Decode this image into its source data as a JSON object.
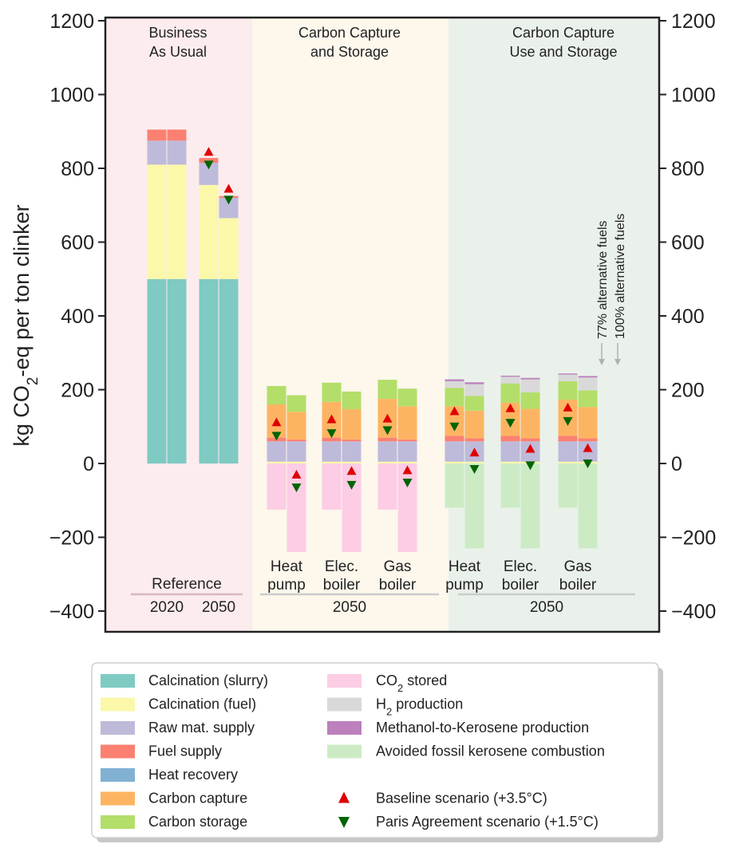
{
  "chart_data": {
    "type": "bar",
    "ylabel_parts": [
      "kg CO",
      "2",
      "-eq per ton clinker"
    ],
    "ylim": [
      -450,
      1200
    ],
    "yticks": [
      1200,
      1000,
      800,
      600,
      400,
      200,
      0,
      -200,
      -400
    ],
    "ytick_labels": [
      "1200",
      "1000",
      "800",
      "600",
      "400",
      "200",
      "0",
      "−200",
      "−400"
    ],
    "grid": false,
    "regions": [
      {
        "label_lines": [
          "Business",
          "As Usual"
        ],
        "color": "#fcecee"
      },
      {
        "label_lines": [
          "Carbon Capture",
          "and Storage"
        ],
        "color": "#fdf7ec"
      },
      {
        "label_lines": [
          "Carbon Capture",
          "Use and Storage"
        ],
        "color": "#eaf1ea"
      }
    ],
    "group_labels": [
      {
        "top": "Reference",
        "bottom_left": "2020",
        "bottom_right": "2050"
      },
      {
        "year": "2050"
      },
      {
        "year": "2050"
      }
    ],
    "categories": [
      [
        "Heat",
        "pump"
      ],
      [
        "Elec.",
        "boiler"
      ],
      [
        "Gas",
        "boiler"
      ],
      [
        "Heat",
        "pump"
      ],
      [
        "Elec.",
        "boiler"
      ],
      [
        "Gas",
        "boiler"
      ]
    ],
    "annotations": [
      "77% alternative fuels",
      "100% alternative fuels"
    ],
    "series": [
      {
        "key": "calc_slurry",
        "name": "Calcination (slurry)",
        "color": "#7fcac3"
      },
      {
        "key": "calc_fuel",
        "name": "Calcination (fuel)",
        "color": "#fbf8a9"
      },
      {
        "key": "raw",
        "name": "Raw mat. supply",
        "color": "#bebada"
      },
      {
        "key": "fuel",
        "name": "Fuel supply",
        "color": "#fb8072"
      },
      {
        "key": "heat",
        "name": "Heat recovery",
        "color": "#80b1d3"
      },
      {
        "key": "capture",
        "name": "Carbon capture",
        "color": "#fdb462"
      },
      {
        "key": "storage",
        "name": "Carbon storage",
        "color": "#b3de69"
      },
      {
        "key": "stored",
        "name_parts": [
          "CO",
          "2",
          " stored"
        ],
        "color": "#fccde5"
      },
      {
        "key": "h2",
        "name_parts": [
          "H",
          "2",
          " production"
        ],
        "color": "#d9d9d9"
      },
      {
        "key": "mtk",
        "name": "Methanol-to-Kerosene production",
        "color": "#bc80bd"
      },
      {
        "key": "avoided",
        "name": "Avoided fossil kerosene combustion",
        "color": "#ccebc5"
      }
    ],
    "markers": [
      {
        "name": "Baseline scenario (+3.5°C)",
        "shape": "triangle-up",
        "color": "#e00000"
      },
      {
        "name": "Paris Agreement scenario (+1.5°C)",
        "shape": "triangle-down",
        "color": "#006400"
      }
    ],
    "bars": [
      {
        "group": "Reference 2020",
        "variant": "77%",
        "stack": {
          "calc_slurry": 500,
          "calc_fuel": 310,
          "raw": 65,
          "fuel": 30
        }
      },
      {
        "group": "Reference 2020",
        "variant": "100%",
        "stack": {
          "calc_slurry": 500,
          "calc_fuel": 310,
          "raw": 65,
          "fuel": 30
        }
      },
      {
        "group": "Reference 2050",
        "variant": "77%",
        "stack": {
          "calc_slurry": 500,
          "calc_fuel": 255,
          "raw": 60,
          "fuel": 13
        },
        "baseline": 845,
        "paris": 810
      },
      {
        "group": "Reference 2050",
        "variant": "100%",
        "stack": {
          "calc_slurry": 500,
          "calc_fuel": 165,
          "raw": 55,
          "fuel": 5
        },
        "baseline": 745,
        "paris": 715
      },
      {
        "group": "CCS Heat pump",
        "variant": "77%",
        "stack": {
          "calc_fuel": 5,
          "raw": 55,
          "fuel": 10,
          "capture": 90,
          "storage": 50,
          "stored": -125
        },
        "baseline": 112,
        "paris": 75
      },
      {
        "group": "CCS Heat pump",
        "variant": "100%",
        "stack": {
          "calc_fuel": 5,
          "raw": 55,
          "fuel": 5,
          "capture": 75,
          "storage": 45,
          "stored": -240
        },
        "baseline": -30,
        "paris": -65
      },
      {
        "group": "CCS Elec. boiler",
        "variant": "77%",
        "stack": {
          "calc_fuel": 5,
          "raw": 55,
          "fuel": 10,
          "capture": 97,
          "storage": 52,
          "stored": -125
        },
        "baseline": 120,
        "paris": 82
      },
      {
        "group": "CCS Elec. boiler",
        "variant": "100%",
        "stack": {
          "calc_fuel": 5,
          "raw": 55,
          "fuel": 5,
          "capture": 82,
          "storage": 48,
          "stored": -240
        },
        "baseline": -20,
        "paris": -58
      },
      {
        "group": "CCS Gas boiler",
        "variant": "77%",
        "stack": {
          "calc_fuel": 5,
          "raw": 55,
          "fuel": 10,
          "capture": 105,
          "storage": 52,
          "stored": -125
        },
        "baseline": 122,
        "paris": 90
      },
      {
        "group": "CCS Gas boiler",
        "variant": "100%",
        "stack": {
          "calc_fuel": 5,
          "raw": 55,
          "fuel": 5,
          "capture": 90,
          "storage": 48,
          "stored": -240
        },
        "baseline": -18,
        "paris": -52
      },
      {
        "group": "CCUS Heat pump",
        "variant": "77%",
        "stack": {
          "calc_fuel": 5,
          "raw": 55,
          "fuel": 15,
          "capture": 80,
          "storage": 50,
          "h2": 18,
          "mtk": 5,
          "avoided": -120
        },
        "baseline": 142,
        "paris": 100
      },
      {
        "group": "CCUS Heat pump",
        "variant": "100%",
        "stack": {
          "calc_fuel": 5,
          "raw": 55,
          "fuel": 8,
          "capture": 75,
          "storage": 40,
          "h2": 32,
          "mtk": 5,
          "avoided": -230
        },
        "baseline": 30,
        "paris": -15
      },
      {
        "group": "CCUS Elec. boiler",
        "variant": "77%",
        "stack": {
          "calc_fuel": 5,
          "raw": 55,
          "fuel": 15,
          "capture": 90,
          "storage": 52,
          "h2": 18,
          "mtk": 3,
          "avoided": -120
        },
        "baseline": 150,
        "paris": 110
      },
      {
        "group": "CCUS Elec. boiler",
        "variant": "100%",
        "stack": {
          "calc_fuel": 5,
          "raw": 55,
          "fuel": 8,
          "capture": 80,
          "storage": 45,
          "h2": 35,
          "mtk": 4,
          "avoided": -230
        },
        "baseline": 40,
        "paris": -5
      },
      {
        "group": "CCUS Gas boiler",
        "variant": "77%",
        "stack": {
          "calc_fuel": 5,
          "raw": 55,
          "fuel": 15,
          "capture": 98,
          "storage": 50,
          "h2": 18,
          "mtk": 3,
          "avoided": -120
        },
        "baseline": 152,
        "paris": 115
      },
      {
        "group": "CCUS Gas boiler",
        "variant": "100%",
        "stack": {
          "calc_fuel": 5,
          "raw": 55,
          "fuel": 8,
          "capture": 85,
          "storage": 45,
          "h2": 35,
          "mtk": 4,
          "avoided": -230
        },
        "baseline": 42,
        "paris": 0
      }
    ]
  }
}
